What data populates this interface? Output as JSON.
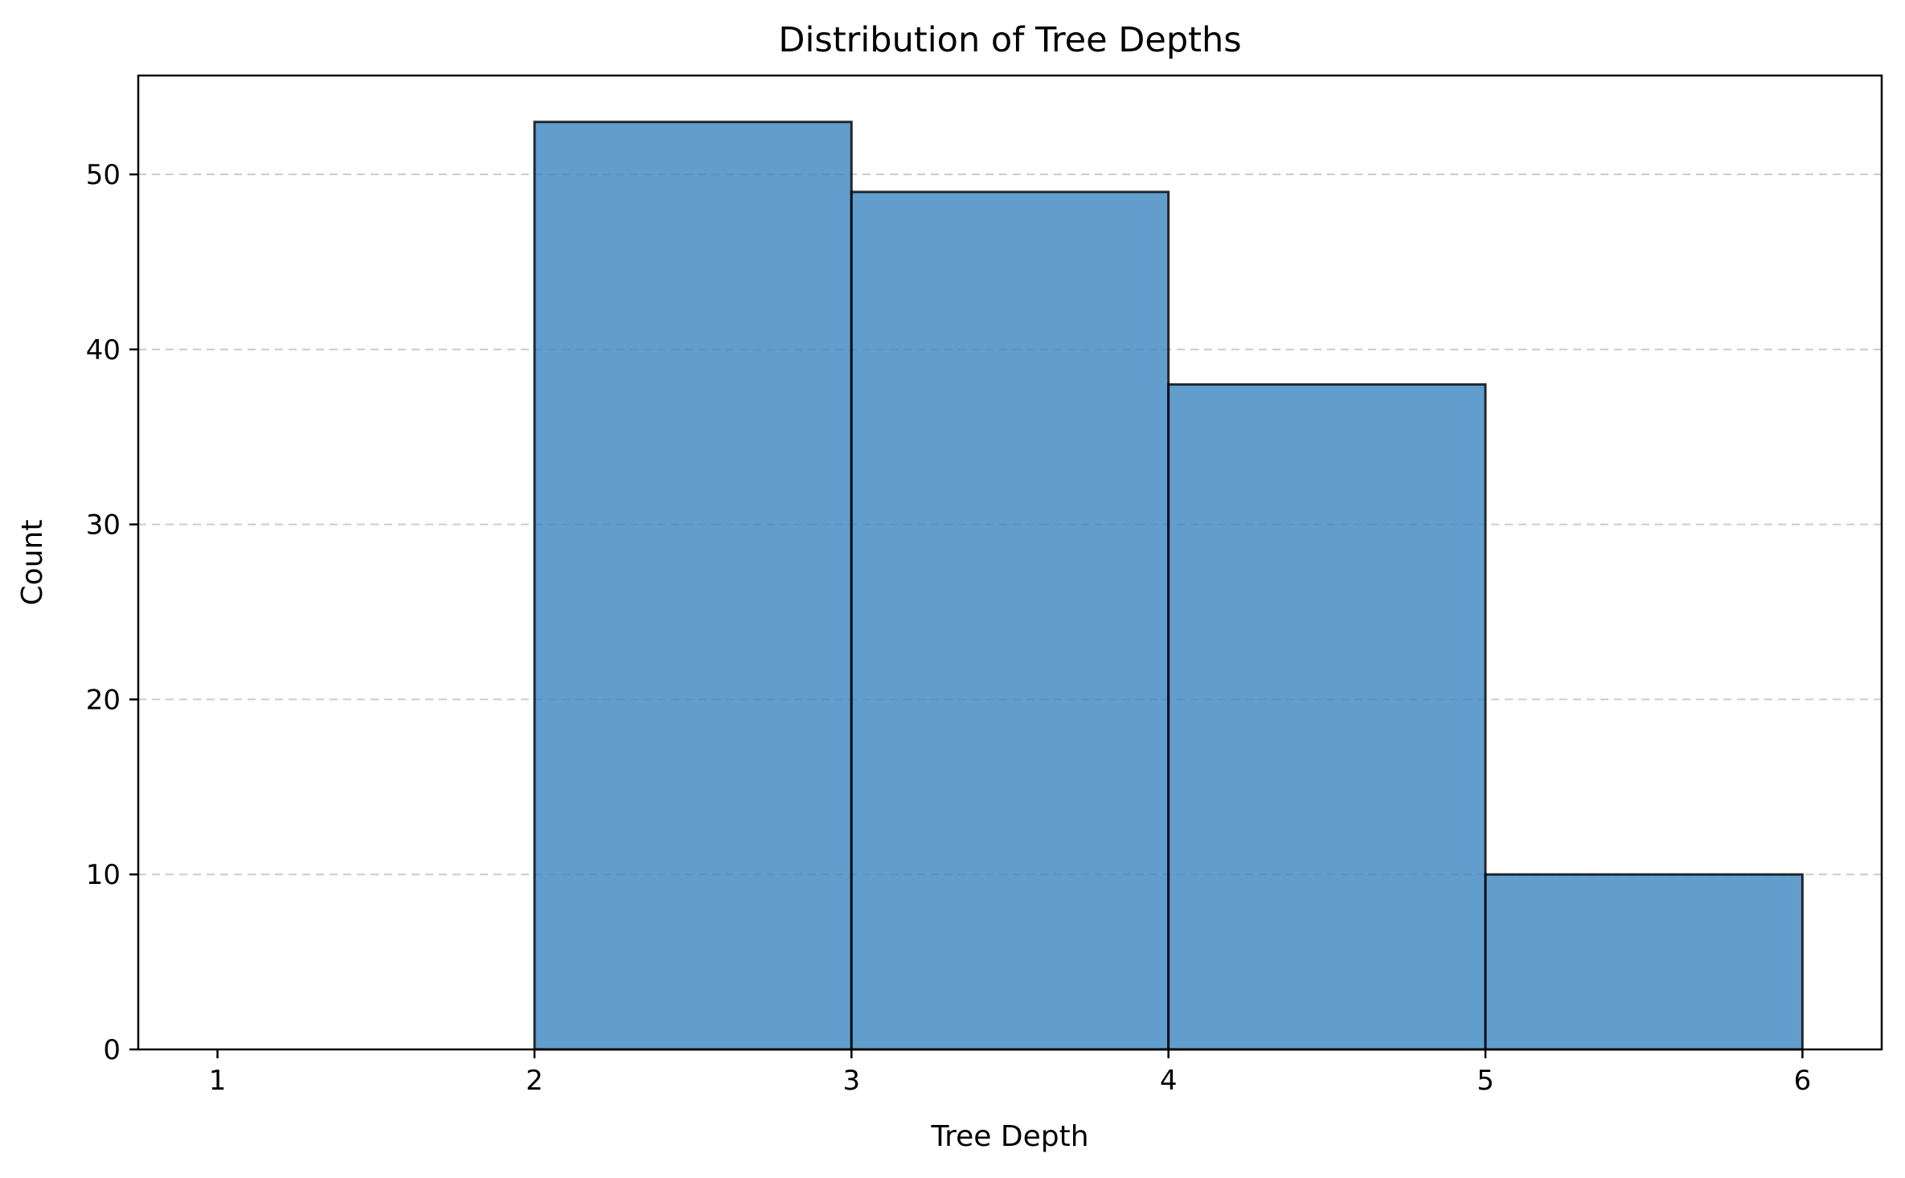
{
  "chart_data": {
    "type": "bar",
    "title": "Distribution of Tree Depths",
    "xlabel": "Tree Depth",
    "ylabel": "Count",
    "bins": [
      {
        "x_start": 1,
        "x_end": 2,
        "value": 0
      },
      {
        "x_start": 2,
        "x_end": 3,
        "value": 53
      },
      {
        "x_start": 3,
        "x_end": 4,
        "value": 49
      },
      {
        "x_start": 4,
        "x_end": 5,
        "value": 38
      },
      {
        "x_start": 5,
        "x_end": 6,
        "value": 10
      }
    ],
    "xlim": [
      0.75,
      6.25
    ],
    "ylim": [
      0,
      55.65
    ],
    "xticks": [
      "1",
      "2",
      "3",
      "4",
      "5",
      "6"
    ],
    "yticks": [
      "0",
      "10",
      "20",
      "30",
      "40",
      "50"
    ],
    "grid": "y-dashed",
    "colors": {
      "bar_fill": "#3a86c0",
      "bar_edge": "#000000",
      "grid": "#cccccc"
    }
  }
}
